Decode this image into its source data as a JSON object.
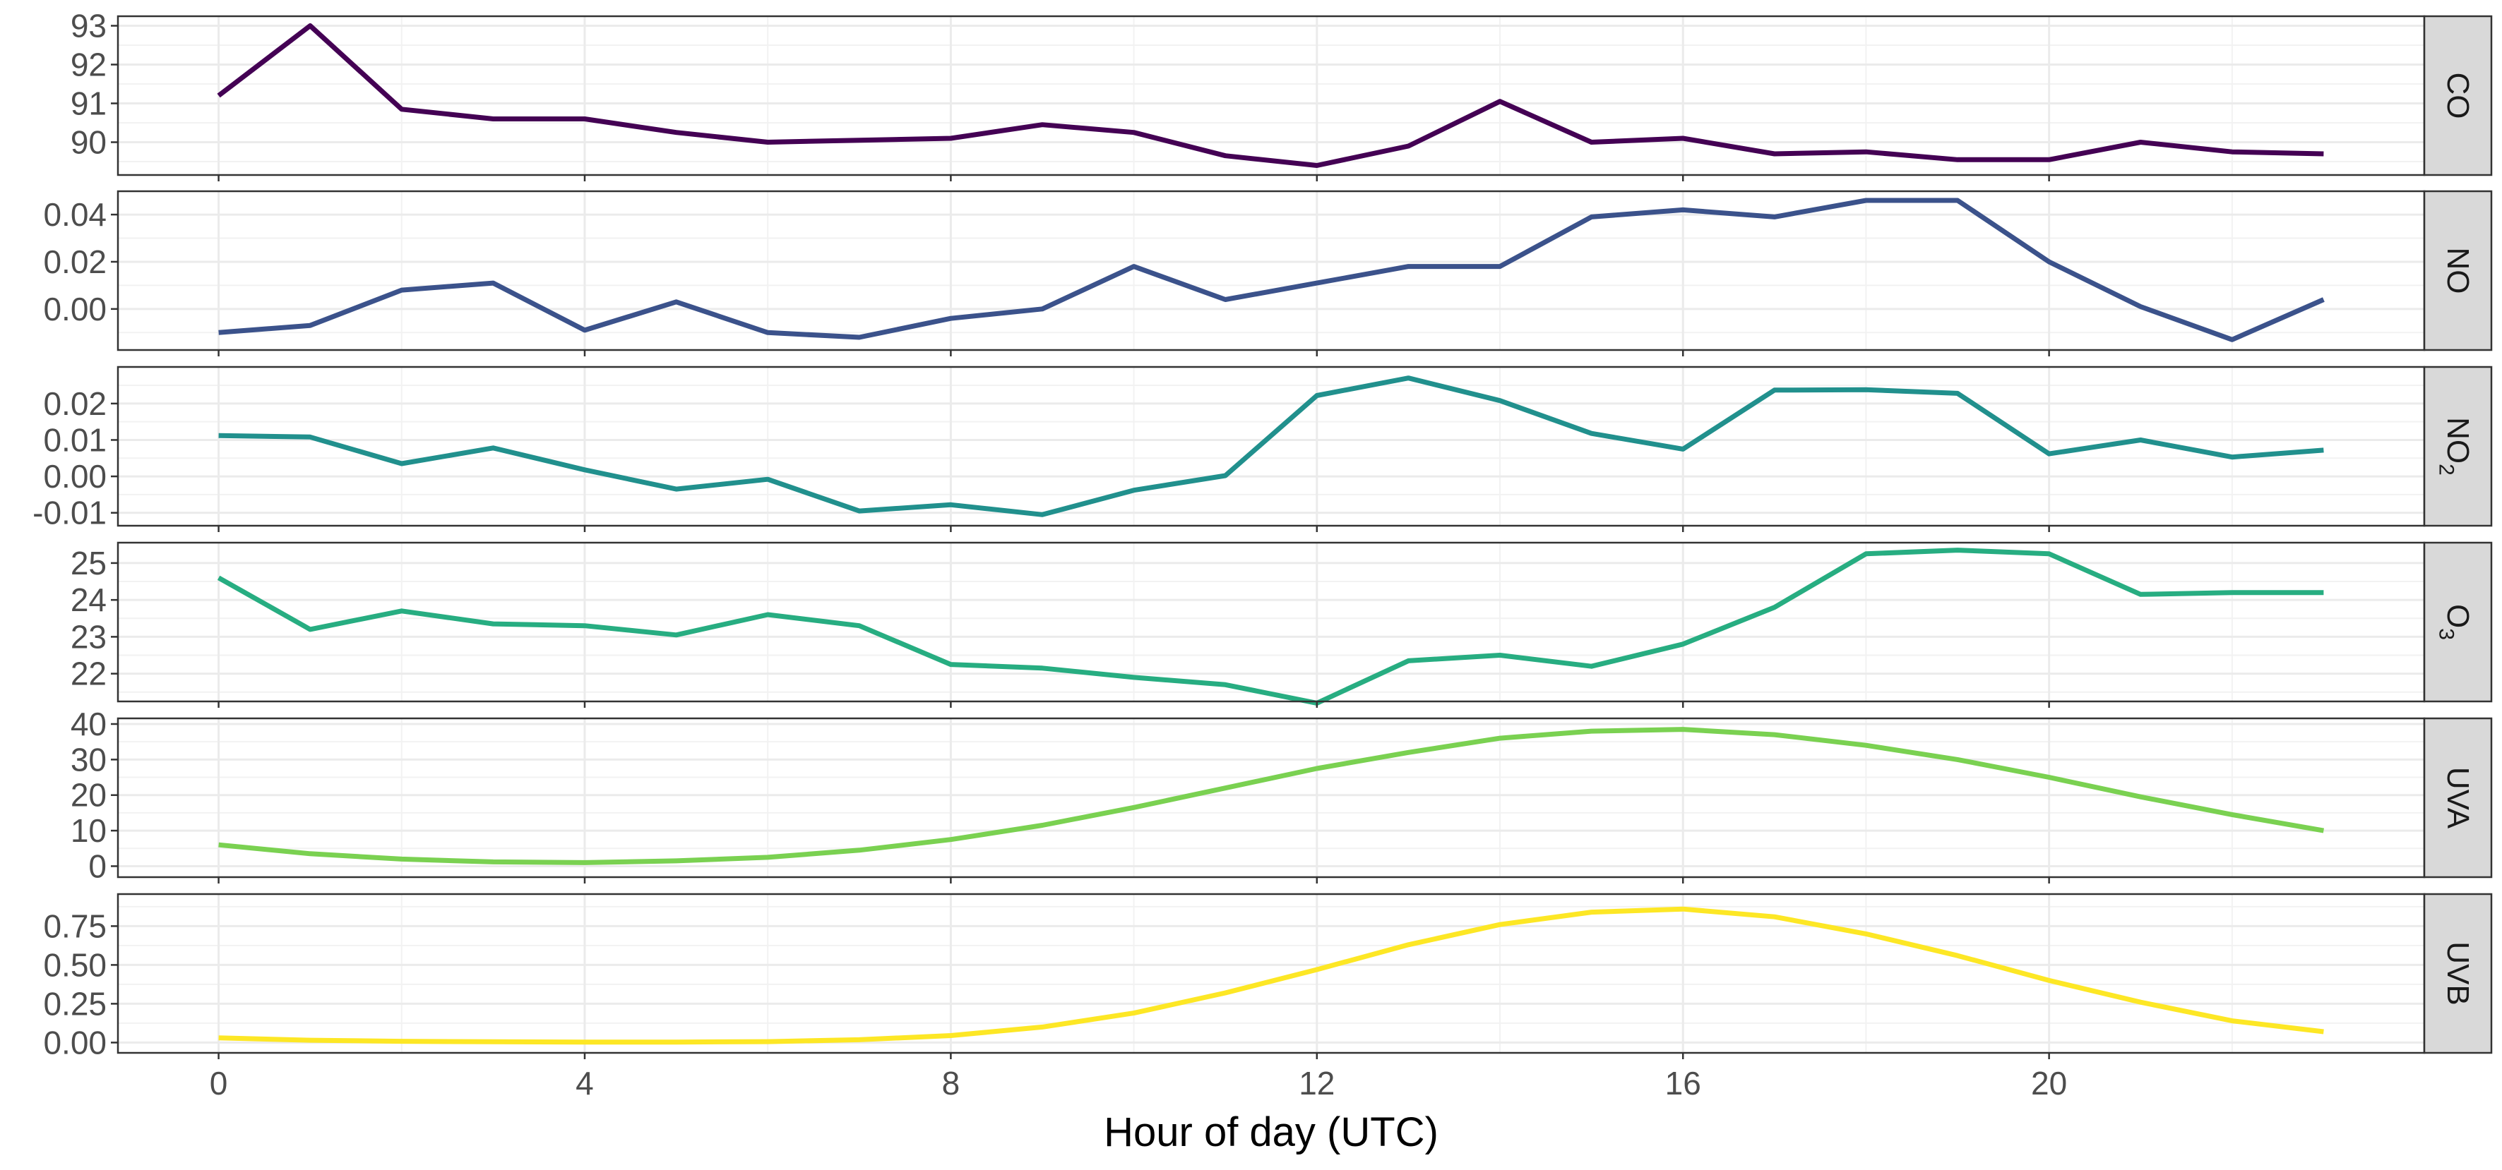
{
  "chart_data": {
    "type": "line",
    "layout": "faceted-vertical",
    "xlabel": "Hour of day (UTC)",
    "x": [
      0,
      1,
      2,
      3,
      4,
      5,
      6,
      7,
      8,
      9,
      10,
      11,
      12,
      13,
      14,
      15,
      16,
      17,
      18,
      19,
      20,
      21,
      22,
      23
    ],
    "xlim": [
      -1.1,
      24.1
    ],
    "xticks": [
      0,
      4,
      8,
      12,
      16,
      20
    ],
    "xtick_labels": [
      "0",
      "4",
      "8",
      "12",
      "16",
      "20"
    ],
    "grid": true,
    "legend": "none",
    "facets": [
      {
        "label": "CO",
        "label_sub": "",
        "color": "#440154",
        "ylim": [
          89.3,
          93.1
        ],
        "yticks": [
          90,
          91,
          92,
          93
        ],
        "ytick_labels": [
          "90",
          "91",
          "92",
          "93"
        ],
        "values": [
          91.2,
          93.0,
          90.85,
          90.6,
          90.6,
          90.25,
          90.0,
          90.05,
          90.1,
          90.45,
          90.25,
          89.65,
          89.4,
          89.9,
          91.05,
          90.0,
          90.1,
          89.7,
          89.75,
          89.55,
          89.55,
          90.0,
          89.75,
          89.7
        ]
      },
      {
        "label": "NO",
        "label_sub": "",
        "color": "#3b528b",
        "ylim": [
          -0.015,
          0.0475
        ],
        "yticks": [
          0.0,
          0.02,
          0.04
        ],
        "ytick_labels": [
          "0.00",
          "0.02",
          "0.04"
        ],
        "values": [
          -0.01,
          -0.007,
          0.008,
          0.011,
          -0.009,
          0.003,
          -0.01,
          -0.012,
          -0.004,
          0.0,
          0.018,
          0.004,
          0.011,
          0.018,
          0.018,
          0.039,
          0.042,
          0.039,
          0.046,
          0.046,
          0.02,
          0.001,
          -0.013,
          0.004
        ]
      },
      {
        "label": "NO",
        "label_sub": "2",
        "color": "#21908d",
        "ylim": [
          -0.012,
          0.0285
        ],
        "yticks": [
          -0.01,
          0.0,
          0.01,
          0.02
        ],
        "ytick_labels": [
          "-0.01",
          "0.00",
          "0.01",
          "0.02"
        ],
        "values": [
          0.0112,
          0.0108,
          0.0035,
          0.0078,
          0.0018,
          -0.0035,
          -0.0008,
          -0.0095,
          -0.0078,
          -0.0105,
          -0.0038,
          0.0002,
          0.0222,
          0.027,
          0.0208,
          0.0118,
          0.0075,
          0.0237,
          0.0238,
          0.0228,
          0.0062,
          0.01,
          0.0053,
          0.0072
        ]
      },
      {
        "label": "O",
        "label_sub": "3",
        "color": "#27ad81",
        "ylim": [
          21.4,
          25.4
        ],
        "yticks": [
          22,
          23,
          24,
          25
        ],
        "ytick_labels": [
          "22",
          "23",
          "24",
          "25"
        ],
        "values": [
          24.6,
          23.2,
          23.7,
          23.35,
          23.3,
          23.05,
          23.6,
          23.3,
          22.25,
          22.15,
          21.9,
          21.7,
          21.2,
          22.35,
          22.5,
          22.2,
          22.8,
          23.8,
          25.25,
          25.35,
          25.25,
          24.15,
          24.2,
          24.2
        ]
      },
      {
        "label": "UVA",
        "label_sub": "",
        "color": "#7ad151",
        "ylim": [
          -1.5,
          40.0
        ],
        "yticks": [
          0,
          10,
          20,
          30,
          40
        ],
        "ytick_labels": [
          "0",
          "10",
          "20",
          "30",
          "40"
        ],
        "values": [
          6.0,
          3.5,
          2.0,
          1.2,
          1.0,
          1.5,
          2.5,
          4.5,
          7.5,
          11.5,
          16.5,
          22.0,
          27.5,
          32.0,
          36.0,
          38.0,
          38.5,
          37.0,
          34.0,
          30.0,
          25.0,
          19.5,
          14.5,
          10.0
        ]
      },
      {
        "label": "UVB",
        "label_sub": "",
        "color": "#fde725",
        "ylim": [
          -0.03,
          0.92
        ],
        "yticks": [
          0.0,
          0.25,
          0.5,
          0.75
        ],
        "ytick_labels": [
          "0.00",
          "0.25",
          "0.50",
          "0.75"
        ],
        "values": [
          0.03,
          0.015,
          0.008,
          0.005,
          0.003,
          0.003,
          0.006,
          0.018,
          0.045,
          0.1,
          0.19,
          0.32,
          0.47,
          0.63,
          0.76,
          0.84,
          0.86,
          0.81,
          0.7,
          0.56,
          0.4,
          0.26,
          0.14,
          0.07
        ]
      }
    ]
  }
}
